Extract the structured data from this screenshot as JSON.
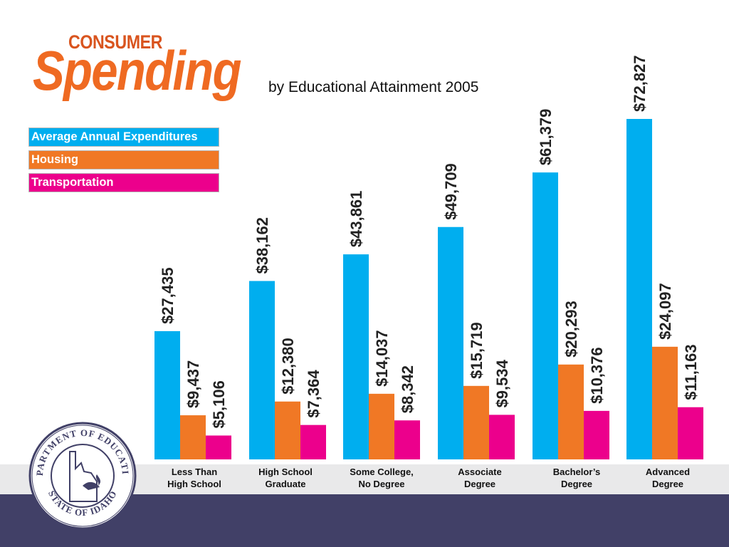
{
  "title": {
    "line1": "CONSUMER",
    "line2": "Spending",
    "subtitle": "by Educational Attainment 2005"
  },
  "colors": {
    "average_annual_expenditures": "#00aeef",
    "housing": "#f07825",
    "transportation": "#ec008c",
    "title_orange": "#ef6a22",
    "footer_navy": "#414067",
    "footer_gray": "#e9e9ea"
  },
  "seal": {
    "top_text": "DEPARTMENT OF EDUCATION",
    "bottom_text": "STATE OF IDAHO"
  },
  "chart_data": {
    "type": "bar",
    "title": "by Educational Attainment 2005",
    "categories": [
      "Less Than\nHigh School",
      "High School\nGraduate",
      "Some College,\nNo Degree",
      "Associate\nDegree",
      "Bachelor’s\nDegree",
      "Advanced\nDegree"
    ],
    "series": [
      {
        "name": "Average Annual Expenditures",
        "values": [
          27435,
          38162,
          43861,
          49709,
          61379,
          72827
        ],
        "labels": [
          "$27,435",
          "$38,162",
          "$43,861",
          "$49,709",
          "$61,379",
          "$72,827"
        ]
      },
      {
        "name": "Housing",
        "values": [
          9437,
          12380,
          14037,
          15719,
          20293,
          24097
        ],
        "labels": [
          "$9,437",
          "$12,380",
          "$14,037",
          "$15,719",
          "$20,293",
          "$24,097"
        ]
      },
      {
        "name": "Transportation",
        "values": [
          5106,
          7364,
          8342,
          9534,
          10376,
          11163
        ],
        "labels": [
          "$5,106",
          "$7,364",
          "$8,342",
          "$9,534",
          "$10,376",
          "$11,163"
        ]
      }
    ],
    "legend_position": "top-left",
    "grid": false,
    "axes_visible": false
  }
}
